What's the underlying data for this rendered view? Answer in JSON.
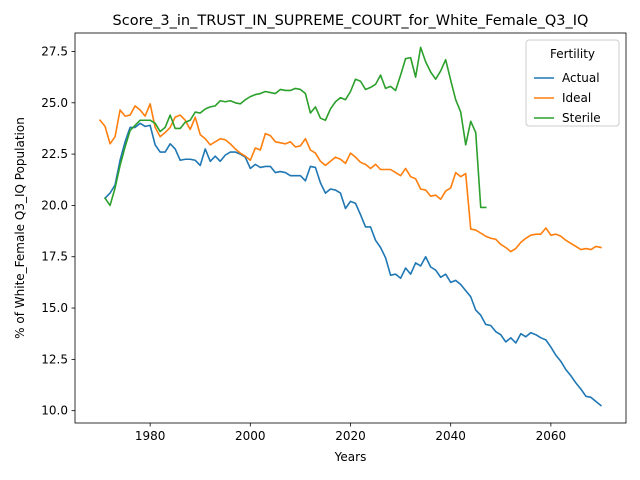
{
  "chart_data": {
    "type": "line",
    "title": "Score_3_in_TRUST_IN_SUPREME_COURT_for_White_Female_Q3_IQ",
    "xlabel": "Years",
    "ylabel": "% of White_Female Q3_IQ Population",
    "xlim": [
      1965,
      2075
    ],
    "ylim": [
      9.4,
      28.4
    ],
    "xticks": [
      1980,
      2000,
      2020,
      2040,
      2060
    ],
    "xtick_labels": [
      "1980",
      "2000",
      "2020",
      "2040",
      "2060"
    ],
    "yticks": [
      10.0,
      12.5,
      15.0,
      17.5,
      20.0,
      22.5,
      25.0,
      27.5
    ],
    "ytick_labels": [
      "10.0",
      "12.5",
      "15.0",
      "17.5",
      "20.0",
      "22.5",
      "25.0",
      "27.5"
    ],
    "grid": false,
    "legend": {
      "title": "Fertility",
      "placement": "top-right"
    },
    "series": [
      {
        "name": "Actual",
        "color": "#1f77b4",
        "x": [
          1971,
          1972,
          1973,
          1974,
          1975,
          1976,
          1977,
          1978,
          1979,
          1980,
          1981,
          1982,
          1983,
          1984,
          1985,
          1986,
          1987,
          1988,
          1989,
          1990,
          1991,
          1992,
          1993,
          1994,
          1995,
          1996,
          1997,
          1998,
          1999,
          2000,
          2001,
          2002,
          2003,
          2004,
          2005,
          2006,
          2007,
          2008,
          2009,
          2010,
          2011,
          2012,
          2013,
          2014,
          2015,
          2016,
          2017,
          2018,
          2019,
          2020,
          2021,
          2022,
          2023,
          2024,
          2025,
          2026,
          2027,
          2028,
          2029,
          2030,
          2031,
          2032,
          2033,
          2034,
          2035,
          2036,
          2037,
          2038,
          2039,
          2040,
          2041,
          2042,
          2043,
          2044,
          2045,
          2046,
          2047,
          2048,
          2049,
          2050,
          2051,
          2052,
          2053,
          2054,
          2055,
          2056,
          2057,
          2058,
          2059,
          2060,
          2061,
          2062,
          2063,
          2064,
          2065,
          2066,
          2067,
          2068,
          2069,
          2070
        ],
        "values": [
          20.35,
          20.6,
          21.0,
          22.2,
          23.1,
          23.8,
          23.8,
          24.0,
          23.85,
          23.9,
          22.95,
          22.6,
          22.6,
          23.0,
          22.75,
          22.2,
          22.25,
          22.25,
          22.2,
          21.95,
          22.75,
          22.15,
          22.4,
          22.15,
          22.45,
          22.6,
          22.6,
          22.5,
          22.35,
          21.8,
          22.0,
          21.85,
          21.9,
          21.9,
          21.6,
          21.65,
          21.6,
          21.45,
          21.45,
          21.45,
          21.2,
          21.9,
          21.85,
          21.1,
          20.6,
          20.8,
          20.75,
          20.6,
          19.85,
          20.2,
          20.1,
          19.55,
          18.95,
          18.95,
          18.3,
          17.95,
          17.45,
          16.6,
          16.65,
          16.45,
          16.95,
          16.65,
          17.2,
          17.05,
          17.5,
          17.0,
          16.85,
          16.5,
          16.65,
          16.25,
          16.35,
          16.15,
          15.85,
          15.55,
          14.9,
          14.65,
          14.2,
          14.15,
          13.85,
          13.7,
          13.35,
          13.55,
          13.3,
          13.75,
          13.6,
          13.8,
          13.7,
          13.55,
          13.45,
          13.1,
          12.7,
          12.4,
          12.0,
          11.7,
          11.35,
          11.05,
          10.7,
          10.65,
          10.45,
          10.25
        ]
      },
      {
        "name": "Ideal",
        "color": "#ff7f0e",
        "x": [
          1970,
          1971,
          1972,
          1973,
          1974,
          1975,
          1976,
          1977,
          1978,
          1979,
          1980,
          1981,
          1982,
          1983,
          1984,
          1985,
          1986,
          1987,
          1988,
          1989,
          1990,
          1991,
          1992,
          1993,
          1994,
          1995,
          1996,
          1997,
          1998,
          1999,
          2000,
          2001,
          2002,
          2003,
          2004,
          2005,
          2006,
          2007,
          2008,
          2009,
          2010,
          2011,
          2012,
          2013,
          2014,
          2015,
          2016,
          2017,
          2018,
          2019,
          2020,
          2021,
          2022,
          2023,
          2024,
          2025,
          2026,
          2027,
          2028,
          2029,
          2030,
          2031,
          2032,
          2033,
          2034,
          2035,
          2036,
          2037,
          2038,
          2039,
          2040,
          2041,
          2042,
          2043,
          2044,
          2045,
          2046,
          2047,
          2048,
          2049,
          2050,
          2051,
          2052,
          2053,
          2054,
          2055,
          2056,
          2057,
          2058,
          2059,
          2060,
          2061,
          2062,
          2063,
          2064,
          2065,
          2066,
          2067,
          2068,
          2069,
          2070
        ],
        "values": [
          24.15,
          23.85,
          23.0,
          23.35,
          24.65,
          24.35,
          24.4,
          24.85,
          24.65,
          24.35,
          24.95,
          23.8,
          23.35,
          23.55,
          23.8,
          24.3,
          24.4,
          24.15,
          23.7,
          24.3,
          23.45,
          23.25,
          22.95,
          23.1,
          23.25,
          23.2,
          23.0,
          22.75,
          22.55,
          22.4,
          22.2,
          22.8,
          22.7,
          23.5,
          23.4,
          23.1,
          23.05,
          23.0,
          23.1,
          22.85,
          22.9,
          23.25,
          22.7,
          22.55,
          22.15,
          21.95,
          22.15,
          22.35,
          22.25,
          22.05,
          22.55,
          22.35,
          22.1,
          22.0,
          21.8,
          22.0,
          21.75,
          21.75,
          21.75,
          21.6,
          21.45,
          21.8,
          21.4,
          21.3,
          20.8,
          20.75,
          20.45,
          20.5,
          20.3,
          20.7,
          20.85,
          21.6,
          21.4,
          21.55,
          18.85,
          18.8,
          18.65,
          18.5,
          18.4,
          18.35,
          18.1,
          17.95,
          17.75,
          17.9,
          18.2,
          18.4,
          18.55,
          18.6,
          18.6,
          18.9,
          18.55,
          18.6,
          18.5,
          18.3,
          18.15,
          18.0,
          17.85,
          17.9,
          17.85,
          18.0,
          17.95
        ]
      },
      {
        "name": "Sterile",
        "color": "#2ca02c",
        "x": [
          1971,
          1972,
          1973,
          1974,
          1975,
          1976,
          1977,
          1978,
          1979,
          1980,
          1981,
          1982,
          1983,
          1984,
          1985,
          1986,
          1987,
          1988,
          1989,
          1990,
          1991,
          1992,
          1993,
          1994,
          1995,
          1996,
          1997,
          1998,
          1999,
          2000,
          2001,
          2002,
          2003,
          2004,
          2005,
          2006,
          2007,
          2008,
          2009,
          2010,
          2011,
          2012,
          2013,
          2014,
          2015,
          2016,
          2017,
          2018,
          2019,
          2020,
          2021,
          2022,
          2023,
          2024,
          2025,
          2026,
          2027,
          2028,
          2029,
          2030,
          2031,
          2032,
          2033,
          2034,
          2035,
          2036,
          2037,
          2038,
          2039,
          2040,
          2041,
          2042,
          2043,
          2044,
          2045,
          2046,
          2047
        ],
        "values": [
          20.35,
          20.0,
          20.85,
          21.95,
          22.85,
          23.65,
          23.9,
          24.15,
          24.15,
          24.15,
          24.0,
          23.6,
          23.8,
          24.4,
          23.75,
          23.75,
          24.05,
          24.15,
          24.55,
          24.5,
          24.7,
          24.8,
          24.85,
          25.1,
          25.05,
          25.1,
          25.0,
          24.95,
          25.15,
          25.3,
          25.4,
          25.45,
          25.55,
          25.5,
          25.45,
          25.65,
          25.6,
          25.6,
          25.7,
          25.65,
          25.45,
          24.5,
          24.8,
          24.25,
          24.15,
          24.7,
          25.05,
          25.25,
          25.15,
          25.55,
          26.15,
          26.05,
          25.65,
          25.75,
          25.9,
          26.35,
          25.7,
          25.8,
          25.6,
          26.35,
          27.15,
          27.2,
          26.25,
          27.7,
          27.0,
          26.5,
          26.15,
          26.55,
          27.1,
          26.1,
          25.15,
          24.55,
          22.95,
          24.1,
          23.55,
          19.9,
          19.9
        ]
      }
    ]
  }
}
